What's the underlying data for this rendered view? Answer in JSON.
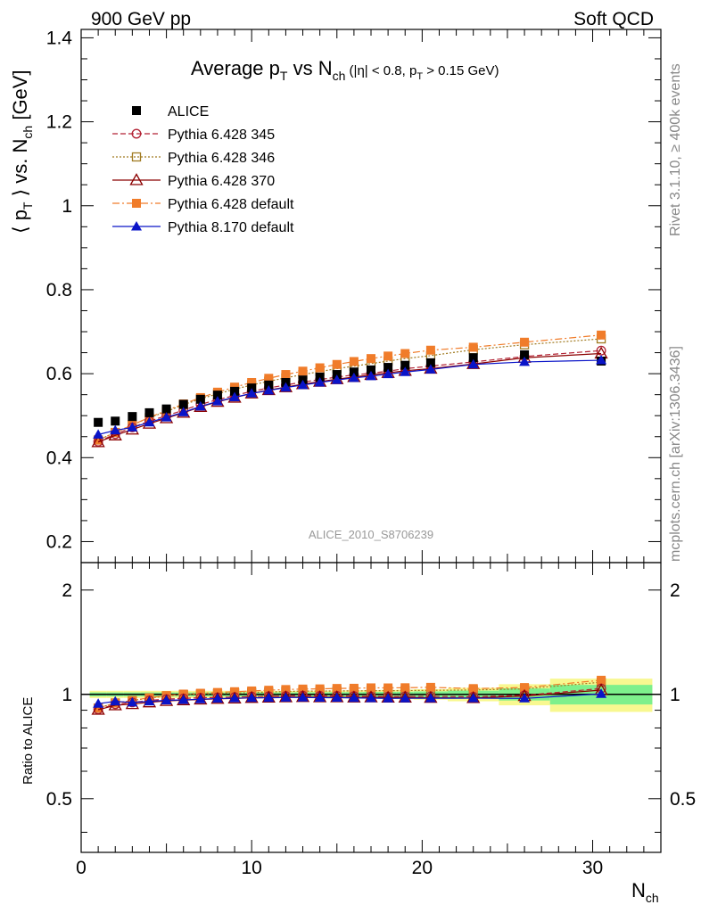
{
  "header": {
    "left_label": "900 GeV pp",
    "right_label": "Soft QCD"
  },
  "side_labels": {
    "rivet": "Rivet 3.1.10, ≥ 400k events",
    "mcplots": "mcplots.cern.ch [arXiv:1306.3436]"
  },
  "analysis_id": "ALICE_2010_S8706239",
  "chart_data": [
    {
      "type": "scatter",
      "title_parts": {
        "t1": "Average p",
        "t2": "T",
        "t3": " vs N",
        "t4": "ch",
        "t5": " (|η| < 0.8, p",
        "t6": "T",
        "t7": " > 0.15 GeV)"
      },
      "ylabel_parts": {
        "y1": "⟨ p",
        "y2": "T",
        "y3": " ⟩ vs. N",
        "y4": "ch",
        "y5": " [GeV]"
      },
      "xlabel_parts": {
        "x1": "N",
        "x2": "ch"
      },
      "xlim": [
        0,
        34
      ],
      "ylim": [
        0.15,
        1.42
      ],
      "y_ticks": [
        "0.2",
        "0.4",
        "0.6",
        "0.8",
        "1",
        "1.2",
        "1.4"
      ],
      "legend_position": "top-left",
      "x": [
        1,
        2,
        3,
        4,
        5,
        6,
        7,
        8,
        9,
        10,
        11,
        12,
        13,
        14,
        15,
        16,
        17,
        18,
        19,
        20.5,
        23,
        26,
        30.5
      ],
      "series": [
        {
          "name": "ALICE",
          "color": "#000000",
          "marker": "square-filled",
          "line": "none",
          "values": [
            0.484,
            0.487,
            0.498,
            0.507,
            0.516,
            0.527,
            0.539,
            0.549,
            0.558,
            0.566,
            0.573,
            0.579,
            0.585,
            0.592,
            0.598,
            0.604,
            0.609,
            0.615,
            0.62,
            0.626,
            0.638,
            0.645,
            0.63
          ]
        },
        {
          "name": "Pythia 6.428 345",
          "color": "#b22234",
          "marker": "circle-open",
          "line": "dashed",
          "values": [
            0.438,
            0.456,
            0.472,
            0.487,
            0.5,
            0.513,
            0.527,
            0.538,
            0.548,
            0.558,
            0.566,
            0.573,
            0.58,
            0.586,
            0.592,
            0.597,
            0.601,
            0.606,
            0.612,
            0.618,
            0.628,
            0.641,
            0.655
          ]
        },
        {
          "name": "Pythia 6.428 346",
          "color": "#a07a20",
          "marker": "square-open",
          "line": "dotted",
          "values": [
            0.442,
            0.46,
            0.478,
            0.495,
            0.51,
            0.526,
            0.54,
            0.552,
            0.563,
            0.573,
            0.582,
            0.59,
            0.598,
            0.605,
            0.612,
            0.618,
            0.624,
            0.63,
            0.636,
            0.643,
            0.657,
            0.669,
            0.683
          ]
        },
        {
          "name": "Pythia 6.428 370",
          "color": "#8b0000",
          "marker": "triangle-open",
          "line": "solid",
          "values": [
            0.437,
            0.453,
            0.467,
            0.481,
            0.494,
            0.507,
            0.521,
            0.533,
            0.543,
            0.553,
            0.561,
            0.568,
            0.575,
            0.581,
            0.587,
            0.592,
            0.597,
            0.602,
            0.607,
            0.612,
            0.623,
            0.638,
            0.648
          ]
        },
        {
          "name": "Pythia 6.428 default",
          "color": "#f07c2a",
          "marker": "square-filled",
          "line": "dashdot",
          "values": [
            0.442,
            0.46,
            0.478,
            0.496,
            0.512,
            0.528,
            0.543,
            0.556,
            0.568,
            0.579,
            0.589,
            0.598,
            0.606,
            0.614,
            0.622,
            0.629,
            0.636,
            0.642,
            0.648,
            0.656,
            0.663,
            0.675,
            0.692
          ]
        },
        {
          "name": "Pythia 8.170 default",
          "color": "#0a14c8",
          "marker": "triangle-filled",
          "line": "solid",
          "values": [
            0.455,
            0.465,
            0.472,
            0.484,
            0.496,
            0.508,
            0.522,
            0.534,
            0.544,
            0.553,
            0.56,
            0.567,
            0.573,
            0.579,
            0.585,
            0.59,
            0.594,
            0.599,
            0.604,
            0.61,
            0.622,
            0.628,
            0.632
          ]
        }
      ]
    },
    {
      "type": "scatter",
      "ylabel": "Ratio to ALICE",
      "xlim": [
        0,
        34
      ],
      "ylim": [
        0.35,
        2.4
      ],
      "y_scale": "log",
      "y_ticks": [
        "0.5",
        "1",
        "2"
      ],
      "x_ticks": [
        "0",
        "10",
        "20",
        "30"
      ],
      "reference_line": 1,
      "bands": {
        "inner_color": "#7ef08c",
        "outer_color": "#f8f890",
        "x": [
          0.5,
          1.5,
          2.5,
          3.5,
          4.5,
          5.5,
          6.5,
          7.5,
          8.5,
          9.5,
          10.5,
          11.5,
          12.5,
          13.5,
          14.5,
          15.5,
          16.5,
          17.5,
          18.5,
          19.5,
          21.5,
          24.5,
          27.5,
          33.5
        ],
        "inner_halfwidth": [
          0.013,
          0.013,
          0.013,
          0.013,
          0.013,
          0.013,
          0.013,
          0.013,
          0.013,
          0.013,
          0.013,
          0.013,
          0.014,
          0.014,
          0.015,
          0.015,
          0.016,
          0.017,
          0.018,
          0.02,
          0.025,
          0.04,
          0.065
        ],
        "outer_halfwidth": [
          0.024,
          0.024,
          0.024,
          0.024,
          0.024,
          0.024,
          0.024,
          0.024,
          0.024,
          0.024,
          0.024,
          0.024,
          0.025,
          0.025,
          0.026,
          0.027,
          0.028,
          0.03,
          0.032,
          0.035,
          0.045,
          0.07,
          0.11
        ]
      }
    }
  ]
}
